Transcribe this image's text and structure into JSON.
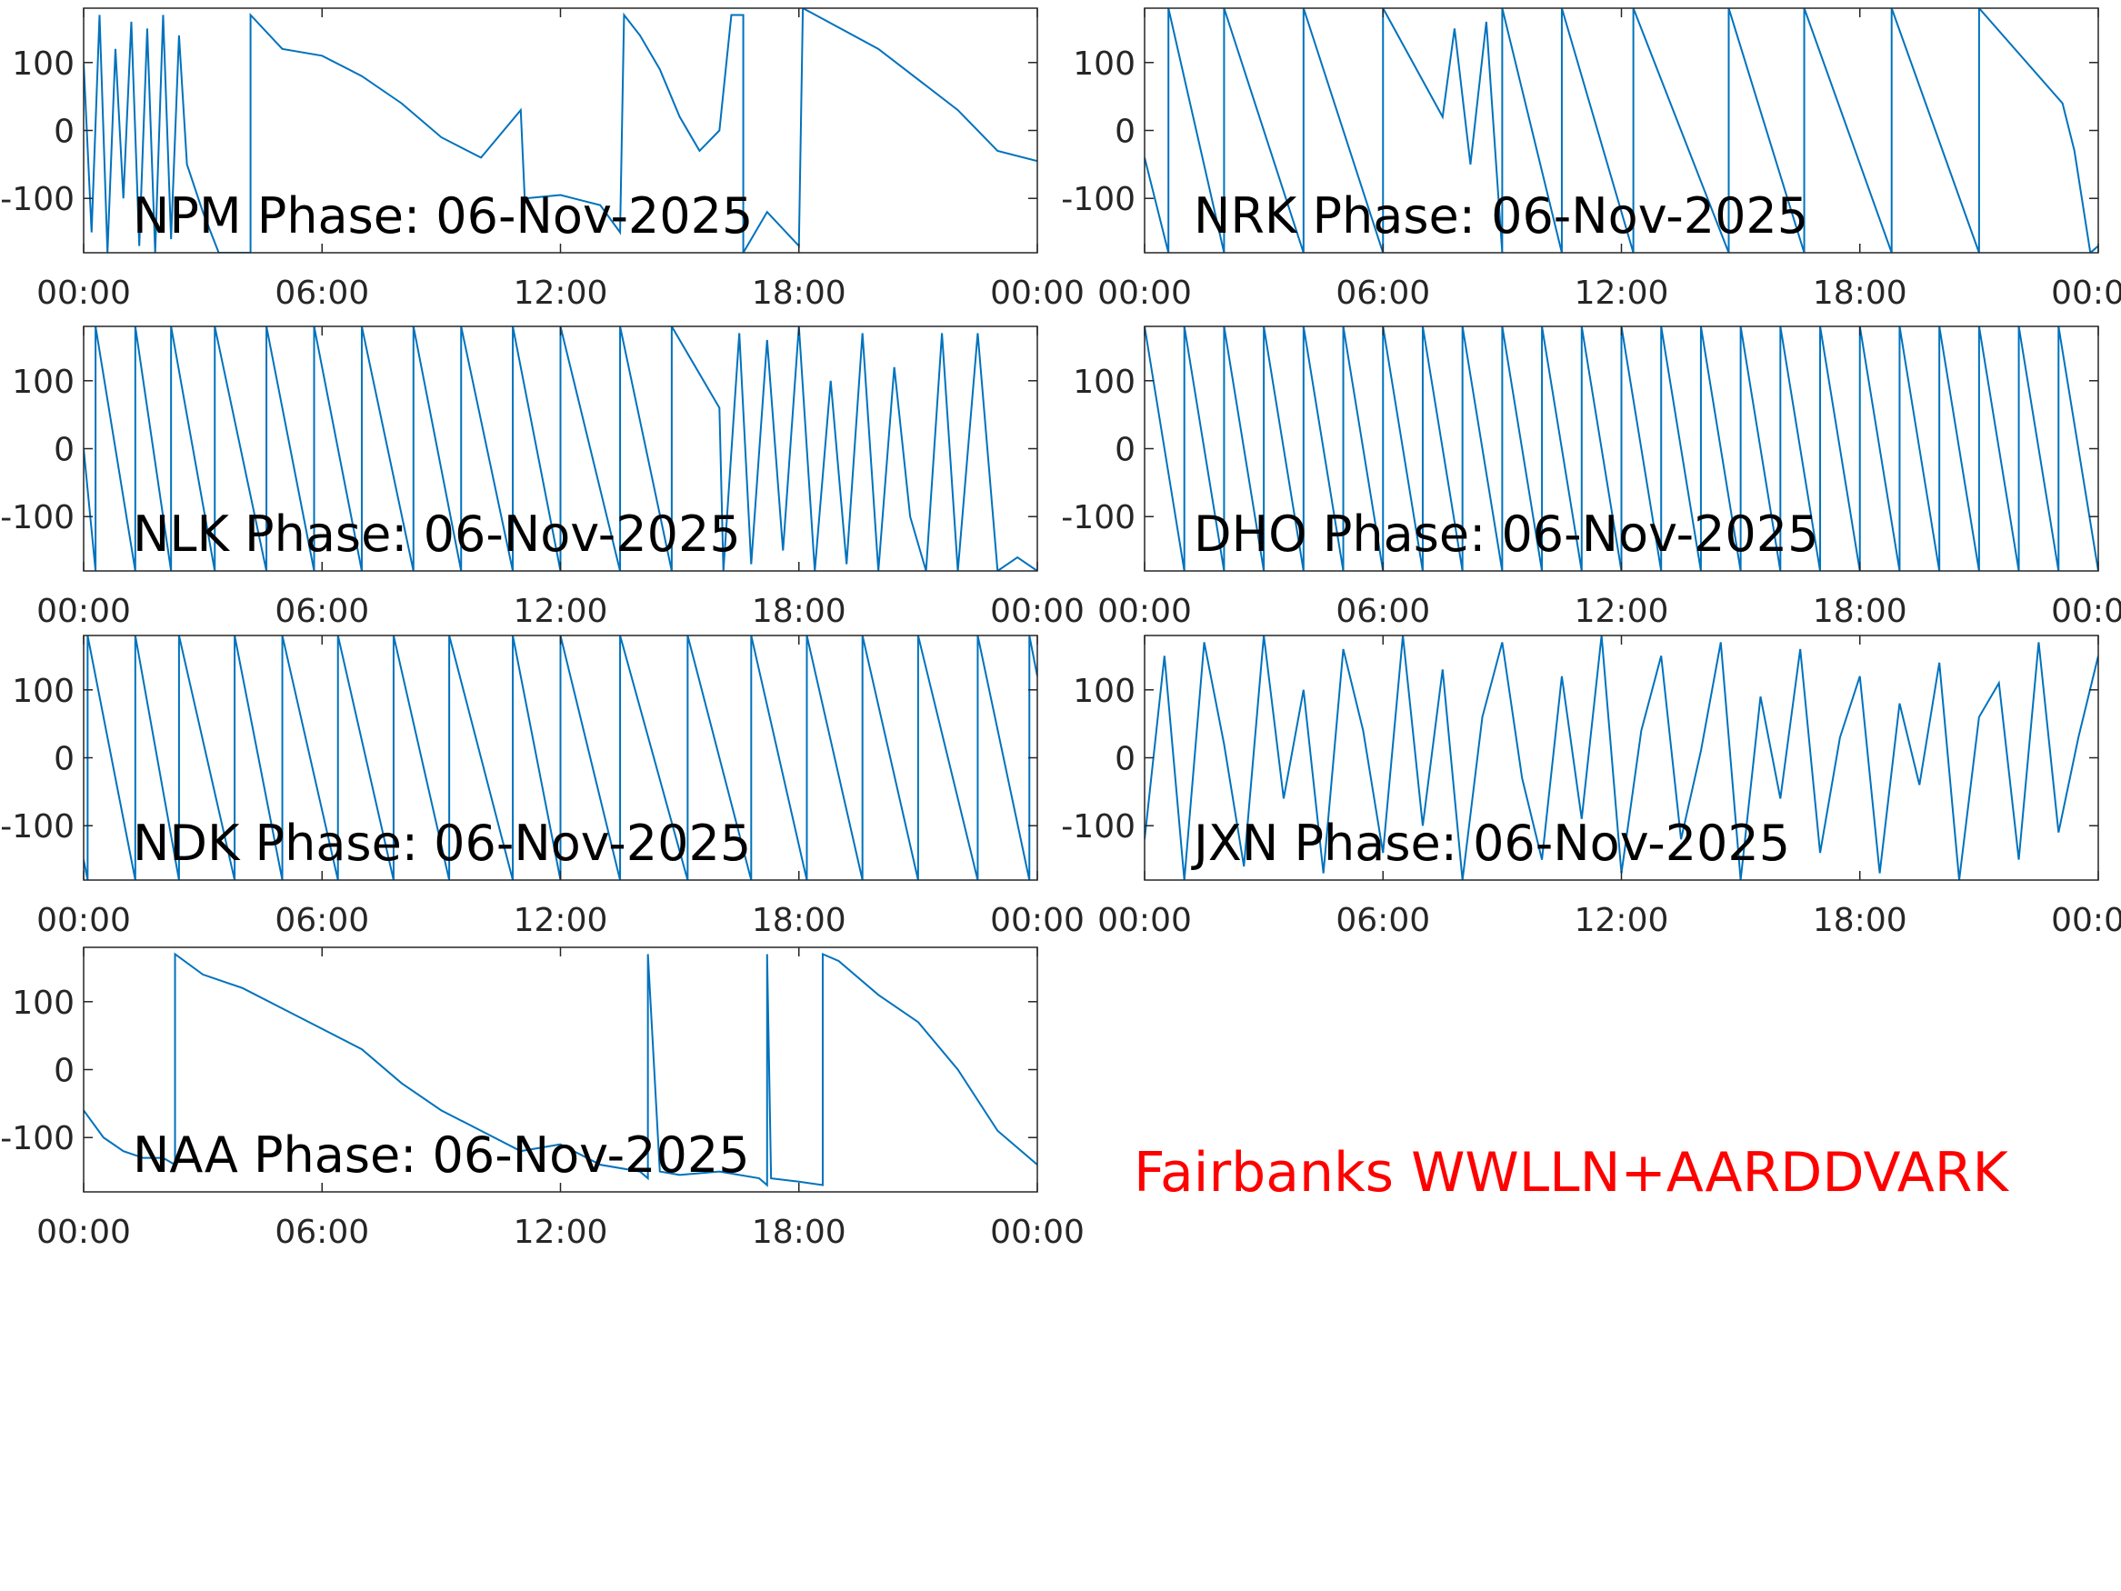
{
  "figure_note": "Fairbanks WWLLN+AARDDVARK",
  "chart_data": [
    {
      "type": "line",
      "title": "NPM Phase: 06-Nov-2025",
      "color": "#0072bd",
      "x": [
        0,
        0.2,
        0.4,
        0.6,
        0.8,
        1.0,
        1.2,
        1.4,
        1.6,
        1.8,
        2.0,
        2.2,
        2.4,
        2.6,
        3.0,
        3.4,
        4.2,
        4.2,
        5.0,
        6.0,
        7.0,
        8.0,
        9.0,
        10.0,
        11.0,
        11.1,
        12.0,
        13.0,
        13.5,
        13.6,
        14.0,
        14.5,
        15.0,
        15.5,
        16.0,
        16.3,
        16.6,
        16.6,
        17.2,
        18.0,
        18.1,
        20.0,
        22.0,
        23.0,
        24.0
      ],
      "values": [
        100,
        -150,
        170,
        -180,
        120,
        -100,
        160,
        -170,
        150,
        -180,
        170,
        -160,
        140,
        -50,
        -120,
        -180,
        -180,
        170,
        120,
        110,
        80,
        40,
        -10,
        -40,
        30,
        -100,
        -95,
        -110,
        -150,
        170,
        140,
        90,
        20,
        -30,
        0,
        170,
        170,
        -180,
        -120,
        -170,
        180,
        120,
        30,
        -30,
        -45
      ],
      "xlim": [
        0,
        24
      ],
      "xticks": [
        {
          "value": 0,
          "label": "00:00"
        },
        {
          "value": 6,
          "label": "06:00"
        },
        {
          "value": 12,
          "label": "12:00"
        },
        {
          "value": 18,
          "label": "18:00"
        },
        {
          "value": 24,
          "label": "00:00"
        }
      ],
      "ylim": [
        -180,
        180
      ],
      "yticks": [
        -100,
        0,
        100
      ]
    },
    {
      "type": "line",
      "title": "NRK Phase: 06-Nov-2025",
      "color": "#0072bd",
      "x": [
        0,
        0.6,
        0.6,
        2.0,
        2.0,
        4.0,
        4.0,
        6.0,
        6.0,
        7.5,
        7.8,
        8.2,
        8.6,
        9.0,
        9.0,
        10.5,
        10.5,
        12.3,
        12.3,
        14.7,
        14.7,
        16.6,
        16.6,
        18.8,
        18.8,
        21.0,
        21.0,
        23.1,
        23.4,
        23.8,
        24
      ],
      "values": [
        -40,
        -180,
        180,
        -180,
        180,
        -180,
        180,
        -180,
        180,
        20,
        150,
        -50,
        160,
        -180,
        180,
        -180,
        180,
        -180,
        180,
        -180,
        180,
        -180,
        180,
        -180,
        180,
        -180,
        180,
        40,
        -30,
        -180,
        -170
      ],
      "xlim": [
        0,
        24
      ],
      "xticks": [
        {
          "value": 0,
          "label": "00:00"
        },
        {
          "value": 6,
          "label": "06:00"
        },
        {
          "value": 12,
          "label": "12:00"
        },
        {
          "value": 18,
          "label": "18:00"
        },
        {
          "value": 24,
          "label": "00:00"
        }
      ],
      "ylim": [
        -180,
        180
      ],
      "yticks": [
        -100,
        0,
        100
      ]
    },
    {
      "type": "line",
      "title": "NLK Phase: 06-Nov-2025",
      "color": "#0072bd",
      "x": [
        0,
        0.3,
        0.3,
        1.3,
        1.3,
        2.2,
        2.2,
        3.3,
        3.3,
        4.6,
        4.6,
        5.8,
        5.8,
        7.0,
        7.0,
        8.3,
        8.3,
        9.5,
        9.5,
        10.8,
        10.8,
        12.0,
        12.0,
        13.5,
        13.5,
        14.8,
        14.8,
        16.0,
        16.1,
        16.5,
        16.8,
        17.2,
        17.6,
        18.0,
        18.4,
        18.8,
        19.2,
        19.6,
        20.0,
        20.4,
        20.8,
        21.2,
        21.6,
        22.0,
        22.5,
        23.0,
        23.5,
        24
      ],
      "values": [
        0,
        -180,
        180,
        -180,
        180,
        -180,
        180,
        -180,
        180,
        -180,
        180,
        -180,
        180,
        -180,
        180,
        -180,
        180,
        -180,
        180,
        -180,
        180,
        -180,
        180,
        -180,
        180,
        -180,
        180,
        60,
        -180,
        170,
        -170,
        160,
        -150,
        180,
        -180,
        100,
        -170,
        170,
        -180,
        120,
        -100,
        -180,
        170,
        -180,
        170,
        -180,
        -160,
        -180
      ],
      "xlim": [
        0,
        24
      ],
      "xticks": [
        {
          "value": 0,
          "label": "00:00"
        },
        {
          "value": 6,
          "label": "06:00"
        },
        {
          "value": 12,
          "label": "12:00"
        },
        {
          "value": 18,
          "label": "18:00"
        },
        {
          "value": 24,
          "label": "00:00"
        }
      ],
      "ylim": [
        -180,
        180
      ],
      "yticks": [
        -100,
        0,
        100
      ]
    },
    {
      "type": "line",
      "title": "DHO Phase: 06-Nov-2025",
      "color": "#0072bd",
      "x": [
        0,
        1,
        1,
        2,
        2,
        3,
        3,
        4,
        4,
        5,
        5,
        6,
        6,
        7,
        7,
        8,
        8,
        9,
        9,
        10,
        10,
        11,
        11,
        12,
        12,
        13,
        13,
        14,
        14,
        15,
        15,
        16,
        16,
        17,
        17,
        18,
        18,
        19,
        19,
        20,
        20,
        21,
        21,
        22,
        22,
        23,
        23,
        24
      ],
      "values": [
        180,
        -180,
        180,
        -180,
        180,
        -180,
        180,
        -180,
        180,
        -180,
        180,
        -180,
        180,
        -180,
        180,
        -180,
        180,
        -180,
        180,
        -180,
        180,
        -180,
        180,
        -180,
        180,
        -180,
        180,
        -180,
        180,
        -180,
        180,
        -180,
        180,
        -180,
        180,
        -180,
        180,
        -180,
        180,
        -180,
        180,
        -180,
        180,
        -180,
        180,
        -180,
        180,
        -180
      ],
      "xlim": [
        0,
        24
      ],
      "xticks": [
        {
          "value": 0,
          "label": "00:00"
        },
        {
          "value": 6,
          "label": "06:00"
        },
        {
          "value": 12,
          "label": "12:00"
        },
        {
          "value": 18,
          "label": "18:00"
        },
        {
          "value": 24,
          "label": "00:00"
        }
      ],
      "ylim": [
        -180,
        180
      ],
      "yticks": [
        -100,
        0,
        100
      ]
    },
    {
      "type": "line",
      "title": "NDK Phase: 06-Nov-2025",
      "color": "#0072bd",
      "x": [
        0,
        0.1,
        0.1,
        1.3,
        1.3,
        2.4,
        2.4,
        3.8,
        3.8,
        5.0,
        5.0,
        6.4,
        6.4,
        7.8,
        7.8,
        9.2,
        9.2,
        10.8,
        10.8,
        12.0,
        12.0,
        13.5,
        13.5,
        15.2,
        15.2,
        16.8,
        16.8,
        18.2,
        18.2,
        19.6,
        19.6,
        21.0,
        21.0,
        22.5,
        22.5,
        23.8,
        23.8,
        24
      ],
      "values": [
        -150,
        -180,
        180,
        -180,
        180,
        -180,
        180,
        -180,
        180,
        -180,
        180,
        -180,
        180,
        -180,
        180,
        -180,
        180,
        -180,
        180,
        -180,
        180,
        -180,
        180,
        -180,
        180,
        -180,
        180,
        -180,
        180,
        -180,
        180,
        -180,
        180,
        -180,
        180,
        -180,
        180,
        120
      ],
      "xlim": [
        0,
        24
      ],
      "xticks": [
        {
          "value": 0,
          "label": "00:00"
        },
        {
          "value": 6,
          "label": "06:00"
        },
        {
          "value": 12,
          "label": "12:00"
        },
        {
          "value": 18,
          "label": "18:00"
        },
        {
          "value": 24,
          "label": "00:00"
        }
      ],
      "ylim": [
        -180,
        180
      ],
      "yticks": [
        -100,
        0,
        100
      ]
    },
    {
      "type": "line",
      "title": "JXN Phase: 06-Nov-2025",
      "color": "#0072bd",
      "x": [
        0,
        0.5,
        1,
        1.5,
        2,
        2.5,
        3,
        3.5,
        4,
        4.5,
        5,
        5.5,
        6,
        6.5,
        7,
        7.5,
        8,
        8.5,
        9,
        9.5,
        10,
        10.5,
        11,
        11.5,
        12,
        12.5,
        13,
        13.5,
        14,
        14.5,
        15,
        15.5,
        16,
        16.5,
        17,
        17.5,
        18,
        18.5,
        19,
        19.5,
        20,
        20.5,
        21,
        21.5,
        22,
        22.5,
        23,
        23.5,
        24
      ],
      "values": [
        -120,
        150,
        -180,
        170,
        20,
        -160,
        180,
        -60,
        100,
        -170,
        160,
        40,
        -140,
        180,
        -100,
        130,
        -180,
        60,
        170,
        -30,
        -150,
        120,
        -90,
        180,
        -170,
        40,
        150,
        -120,
        10,
        170,
        -180,
        90,
        -60,
        160,
        -140,
        30,
        120,
        -170,
        80,
        -40,
        140,
        -180,
        60,
        110,
        -150,
        170,
        -110,
        30,
        150
      ],
      "xlim": [
        0,
        24
      ],
      "xticks": [
        {
          "value": 0,
          "label": "00:00"
        },
        {
          "value": 6,
          "label": "06:00"
        },
        {
          "value": 12,
          "label": "12:00"
        },
        {
          "value": 18,
          "label": "18:00"
        },
        {
          "value": 24,
          "label": "00:00"
        }
      ],
      "ylim": [
        -180,
        180
      ],
      "yticks": [
        -100,
        0,
        100
      ]
    },
    {
      "type": "line",
      "title": "NAA Phase: 06-Nov-2025",
      "color": "#0072bd",
      "x": [
        0,
        0.5,
        1,
        1.5,
        2.0,
        2.3,
        2.3,
        3,
        4,
        5,
        6,
        7,
        8,
        9,
        10,
        11,
        12,
        13,
        14,
        14.2,
        14.2,
        14.5,
        15,
        16,
        17,
        17.2,
        17.2,
        17.3,
        18,
        18.6,
        18.6,
        19,
        20,
        21,
        22,
        23,
        24
      ],
      "values": [
        -60,
        -100,
        -120,
        -130,
        -130,
        -140,
        170,
        140,
        120,
        90,
        60,
        30,
        -20,
        -60,
        -90,
        -120,
        -110,
        -140,
        -150,
        -160,
        170,
        -150,
        -155,
        -150,
        -160,
        -170,
        170,
        -160,
        -165,
        -170,
        170,
        160,
        110,
        70,
        0,
        -90,
        -140
      ],
      "xlim": [
        0,
        24
      ],
      "xticks": [
        {
          "value": 0,
          "label": "00:00"
        },
        {
          "value": 6,
          "label": "06:00"
        },
        {
          "value": 12,
          "label": "12:00"
        },
        {
          "value": 18,
          "label": "18:00"
        },
        {
          "value": 24,
          "label": "00:00"
        }
      ],
      "ylim": [
        -180,
        180
      ],
      "yticks": [
        -100,
        0,
        100
      ]
    }
  ]
}
